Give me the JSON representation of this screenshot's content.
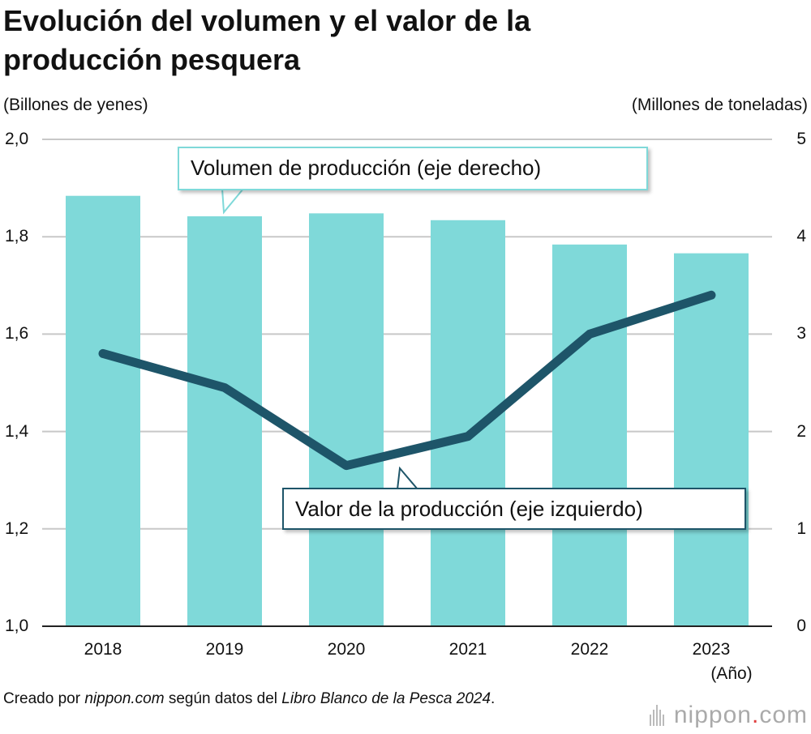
{
  "title": "Evolución del volumen y el valor de la producción pesquera",
  "source": {
    "prefix": "Creado por ",
    "site": "nippon.com",
    "middle": " según datos del ",
    "book": "Libro Blanco de la Pesca 2024",
    "suffix": "."
  },
  "brand": {
    "name": "nippon",
    "dot": ".",
    "tld": "com"
  },
  "colors": {
    "bar": "#7fd9d9",
    "line": "#1e5569",
    "grid": "#c8c8c8",
    "axis": "#222222"
  },
  "chart_data": {
    "type": "bar",
    "categories": [
      "2018",
      "2019",
      "2020",
      "2021",
      "2022",
      "2023"
    ],
    "x_unit": "(Año)",
    "y_left": {
      "label": "(Billones de yenes)",
      "range": [
        1.0,
        2.0
      ],
      "ticks": [
        "1,0",
        "1,2",
        "1,4",
        "1,6",
        "1,8",
        "2,0"
      ]
    },
    "y_right": {
      "label": "(Millones de toneladas)",
      "range": [
        0,
        5
      ],
      "ticks": [
        "0",
        "1",
        "2",
        "3",
        "4",
        "5"
      ]
    },
    "grid": true,
    "series": [
      {
        "name": "Volumen de producción (eje derecho)",
        "type": "bar",
        "axis": "right",
        "values": [
          4.42,
          4.21,
          4.24,
          4.17,
          3.92,
          3.83
        ]
      },
      {
        "name": "Valor de la producción (eje izquierdo)",
        "type": "line",
        "axis": "left",
        "values": [
          1.56,
          1.49,
          1.33,
          1.39,
          1.6,
          1.68
        ]
      }
    ]
  }
}
